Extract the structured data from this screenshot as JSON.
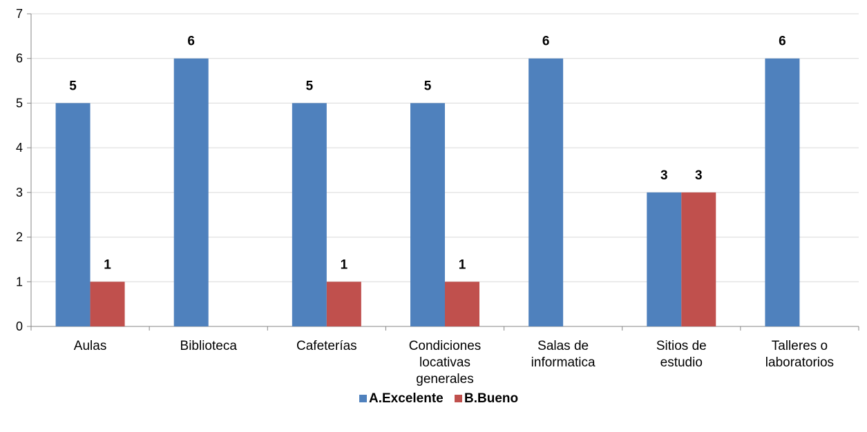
{
  "chart_data": {
    "type": "bar",
    "categories": [
      [
        "Aulas"
      ],
      [
        "Biblioteca"
      ],
      [
        "Cafeterías"
      ],
      [
        "Condiciones",
        "locativas",
        "generales"
      ],
      [
        "Salas de",
        "informatica"
      ],
      [
        "Sitios de",
        "estudio"
      ],
      [
        "Talleres o",
        "laboratorios"
      ]
    ],
    "series": [
      {
        "name": "A.Excelente",
        "color": "#4f81bd",
        "values": [
          5,
          6,
          5,
          5,
          6,
          3,
          6
        ]
      },
      {
        "name": "B.Bueno",
        "color": "#c0504d",
        "values": [
          1,
          null,
          1,
          1,
          null,
          3,
          null
        ]
      }
    ],
    "yticks": [
      "0",
      "1",
      "2",
      "3",
      "4",
      "5",
      "6",
      "7"
    ],
    "ylim": [
      0,
      7
    ],
    "grid": true,
    "legend": "bottom-center",
    "data_labels": true
  }
}
